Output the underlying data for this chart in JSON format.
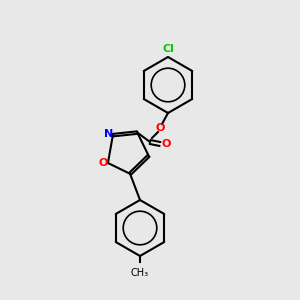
{
  "background_color": "#e8e8e8",
  "bond_color": "#000000",
  "atom_colors": {
    "Cl": "#00cc00",
    "O": "#ff0000",
    "N": "#0000ff",
    "C": "#000000"
  },
  "figsize": [
    3.0,
    3.0
  ],
  "dpi": 100
}
